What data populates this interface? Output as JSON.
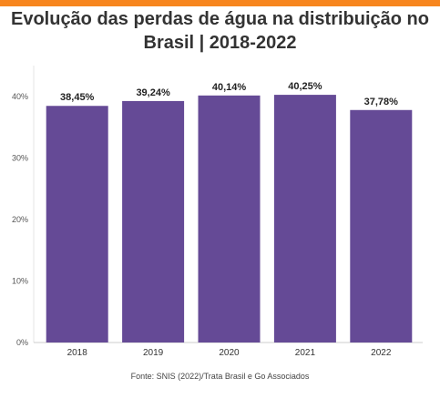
{
  "title_lines": [
    "Evolução das perdas de água na distribuição no",
    "Brasil | 2018-2022"
  ],
  "source": "Fonte: SNIS (2022)/Trata Brasil e Go Associados",
  "colors": {
    "bar": "#654a96",
    "accent": "#f7861e"
  },
  "chart_data": {
    "type": "bar",
    "categories": [
      "2018",
      "2019",
      "2020",
      "2021",
      "2022"
    ],
    "values": [
      38.45,
      39.24,
      40.14,
      40.25,
      37.78
    ],
    "value_labels": [
      "38,45%",
      "39,24%",
      "40,14%",
      "40,25%",
      "37,78%"
    ],
    "title": "Evolução das perdas de água na distribuição no Brasil | 2018-2022",
    "xlabel": "",
    "ylabel": "",
    "ylim": [
      0,
      45
    ],
    "yticks": [
      0,
      10,
      20,
      30,
      40
    ],
    "ytick_labels": [
      "0%",
      "10%",
      "20%",
      "30%",
      "40%"
    ],
    "grid": false,
    "legend": "none"
  }
}
